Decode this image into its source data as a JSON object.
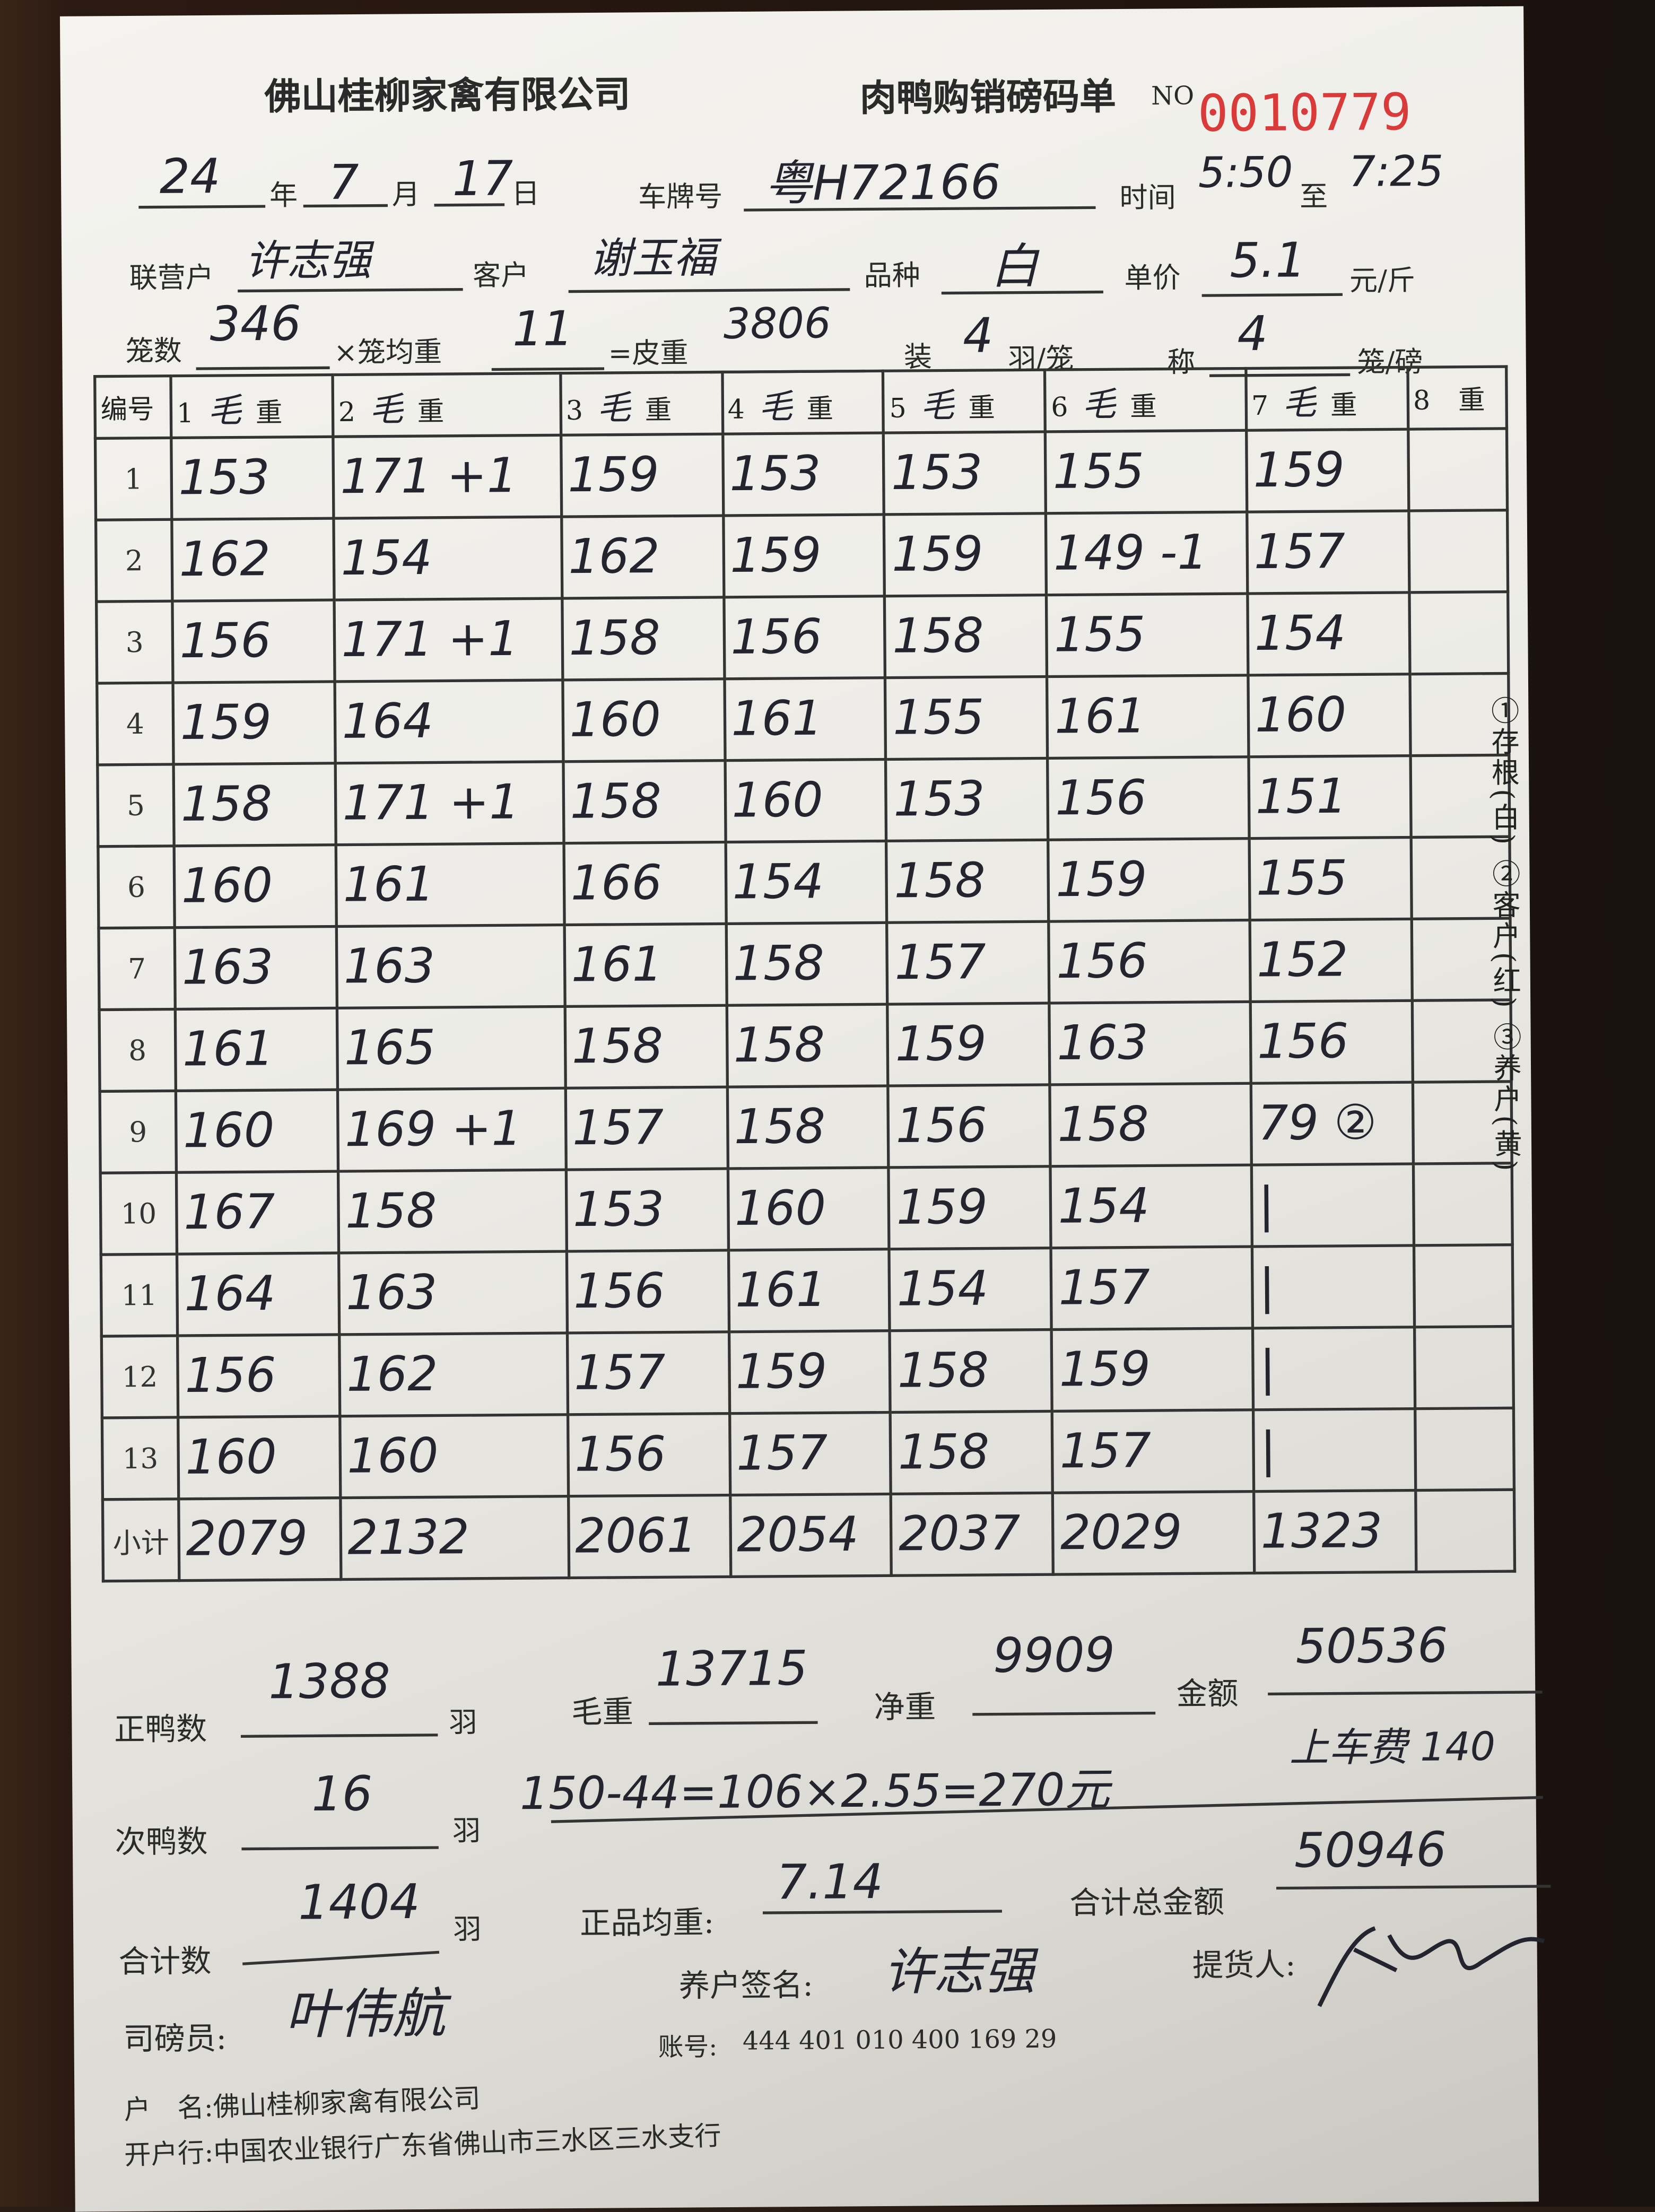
{
  "header": {
    "company": "佛山桂柳家禽有限公司",
    "form_title": "肉鸭购销磅码单",
    "no_label": "NO",
    "serial": "0010779"
  },
  "row1": {
    "year": "24",
    "year_label": "年",
    "month": "7",
    "month_label": "月",
    "day": "17",
    "day_label": "日",
    "plate_label": "车牌号",
    "plate": "粤H72166",
    "time_label": "时间",
    "time_from": "5:50",
    "time_to_label": "至",
    "time_to": "7:25"
  },
  "row2": {
    "partner_label": "联营户",
    "partner": "许志强",
    "customer_label": "客户",
    "customer": "谢玉福",
    "variety_label": "品种",
    "variety": "白",
    "price_label": "单价",
    "price": "5.1",
    "price_unit": "元/斤"
  },
  "row3": {
    "cages_label": "笼数",
    "cages": "346",
    "avg_label": "×笼均重",
    "avg": "11",
    "tare_label": "=皮重",
    "tare": "3806",
    "pack_label": "装",
    "pack": "4",
    "pack_unit": "羽/笼",
    "weigh_label": "称",
    "weigh": "4",
    "weigh_unit": "笼/磅"
  },
  "table": {
    "corner": "编号",
    "columns": [
      {
        "n": "1",
        "h": "毛",
        "w": "重"
      },
      {
        "n": "2",
        "h": "毛",
        "w": "重"
      },
      {
        "n": "3",
        "h": "毛",
        "w": "重"
      },
      {
        "n": "4",
        "h": "毛",
        "w": "重"
      },
      {
        "n": "5",
        "h": "毛",
        "w": "重"
      },
      {
        "n": "6",
        "h": "毛",
        "w": "重"
      },
      {
        "n": "7",
        "h": "毛",
        "w": "重"
      },
      {
        "n": "8",
        "h": "",
        "w": "重"
      }
    ],
    "rows": [
      [
        "1",
        "153",
        "171 +1",
        "159",
        "153",
        "153",
        "155",
        "159",
        ""
      ],
      [
        "2",
        "162",
        "154",
        "162",
        "159",
        "159",
        "149 -1",
        "157",
        ""
      ],
      [
        "3",
        "156",
        "171 +1",
        "158",
        "156",
        "158",
        "155",
        "154",
        ""
      ],
      [
        "4",
        "159",
        "164",
        "160",
        "161",
        "155",
        "161",
        "160",
        ""
      ],
      [
        "5",
        "158",
        "171 +1",
        "158",
        "160",
        "153",
        "156",
        "151",
        ""
      ],
      [
        "6",
        "160",
        "161",
        "166",
        "154",
        "158",
        "159",
        "155",
        ""
      ],
      [
        "7",
        "163",
        "163",
        "161",
        "158",
        "157",
        "156",
        "152",
        ""
      ],
      [
        "8",
        "161",
        "165",
        "158",
        "158",
        "159",
        "163",
        "156",
        ""
      ],
      [
        "9",
        "160",
        "169 +1",
        "157",
        "158",
        "156",
        "158",
        "79 ②",
        ""
      ],
      [
        "10",
        "167",
        "158",
        "153",
        "160",
        "159",
        "154",
        "|",
        ""
      ],
      [
        "11",
        "164",
        "163",
        "156",
        "161",
        "154",
        "157",
        "|",
        ""
      ],
      [
        "12",
        "156",
        "162",
        "157",
        "159",
        "158",
        "159",
        "|",
        ""
      ],
      [
        "13",
        "160",
        "160",
        "156",
        "157",
        "158",
        "157",
        "|",
        ""
      ]
    ],
    "subtotal_label": "小计",
    "subtotals": [
      "2079",
      "2132",
      "2061",
      "2054",
      "2037",
      "2029",
      "1323",
      ""
    ]
  },
  "side_note": "①存根(白) ②客户(红) ③养户(黄)",
  "summary": {
    "good_label": "正鸭数",
    "good": "1388",
    "good_unit": "羽",
    "gross_label": "毛重",
    "gross": "13715",
    "net_label": "净重",
    "net": "9909",
    "amount_label": "金额",
    "amount": "50536",
    "sub_label": "次鸭数",
    "sub": "16",
    "sub_unit": "羽",
    "calc_note": "150-44=106×2.55=270元",
    "freight_note": "上车费 140",
    "total_label": "合计数",
    "total": "1404",
    "total_unit": "羽",
    "avg_label": "正品均重:",
    "avg": "7.14",
    "grand_label": "合计总金额",
    "grand": "50946"
  },
  "signatures": {
    "weigher_label": "司磅员:",
    "weigher": "叶伟航",
    "farmer_label": "养户签名:",
    "farmer": "许志强",
    "picker_label": "提货人:",
    "picker": "签名"
  },
  "bank": {
    "account_label": "账号:",
    "account": "444 401 010 400 169 29",
    "name_label": "户　名:",
    "name": "佛山桂柳家禽有限公司",
    "bank_label": "开户行:",
    "bank": "中国农业银行广东省佛山市三水区三水支行"
  }
}
